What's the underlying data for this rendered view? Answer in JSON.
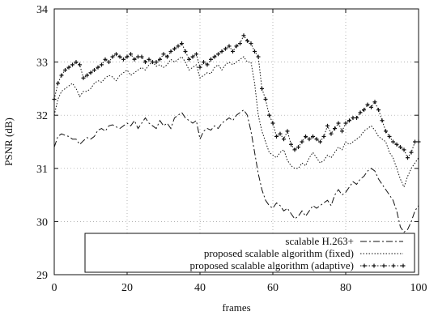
{
  "chart_data": {
    "type": "line",
    "xlabel": "frames",
    "ylabel": "PSNR (dB)",
    "xlim": [
      0,
      100
    ],
    "ylim": [
      29,
      34
    ],
    "xticks": [
      0,
      20,
      40,
      60,
      80,
      100
    ],
    "yticks": [
      29,
      30,
      31,
      32,
      33,
      34
    ],
    "grid": true,
    "legend_position": "bottom-right",
    "series": [
      {
        "name": "scalable H.263+",
        "style": "dash-dot line",
        "x": [
          0,
          1,
          2,
          3,
          4,
          5,
          6,
          7,
          8,
          9,
          10,
          11,
          12,
          13,
          14,
          15,
          16,
          17,
          18,
          19,
          20,
          21,
          22,
          23,
          24,
          25,
          26,
          27,
          28,
          29,
          30,
          31,
          32,
          33,
          34,
          35,
          36,
          37,
          38,
          39,
          40,
          41,
          42,
          43,
          44,
          45,
          46,
          47,
          48,
          49,
          50,
          51,
          52,
          53,
          54,
          55,
          56,
          57,
          58,
          59,
          60,
          61,
          62,
          63,
          64,
          65,
          66,
          67,
          68,
          69,
          70,
          71,
          72,
          73,
          74,
          75,
          76,
          77,
          78,
          79,
          80,
          81,
          82,
          83,
          84,
          85,
          86,
          87,
          88,
          89,
          90,
          91,
          92,
          93,
          94,
          95,
          96,
          97,
          98,
          99,
          100
        ],
        "values": [
          31.4,
          31.6,
          31.65,
          31.62,
          31.6,
          31.55,
          31.55,
          31.45,
          31.52,
          31.58,
          31.55,
          31.6,
          31.72,
          31.75,
          31.7,
          31.8,
          31.82,
          31.78,
          31.75,
          31.8,
          31.85,
          31.8,
          31.9,
          31.75,
          31.85,
          31.95,
          31.85,
          31.8,
          31.75,
          31.9,
          31.8,
          31.85,
          31.75,
          31.95,
          32.0,
          32.05,
          31.95,
          31.9,
          31.85,
          31.9,
          31.55,
          31.7,
          31.75,
          31.72,
          31.8,
          31.75,
          31.85,
          31.9,
          31.95,
          31.9,
          32.0,
          32.05,
          32.1,
          32.0,
          31.7,
          31.3,
          30.9,
          30.6,
          30.4,
          30.3,
          30.25,
          30.35,
          30.3,
          30.2,
          30.25,
          30.15,
          30.05,
          30.1,
          30.2,
          30.1,
          30.2,
          30.3,
          30.25,
          30.3,
          30.35,
          30.4,
          30.3,
          30.5,
          30.6,
          30.5,
          30.55,
          30.65,
          30.75,
          30.7,
          30.8,
          30.85,
          30.95,
          31.0,
          30.95,
          30.8,
          30.7,
          30.6,
          30.5,
          30.4,
          30.2,
          29.9,
          29.8,
          29.85,
          30.0,
          30.2,
          30.3
        ]
      },
      {
        "name": "proposed scalable algorithm (fixed)",
        "style": "dotted line",
        "x": [
          0,
          1,
          2,
          3,
          4,
          5,
          6,
          7,
          8,
          9,
          10,
          11,
          12,
          13,
          14,
          15,
          16,
          17,
          18,
          19,
          20,
          21,
          22,
          23,
          24,
          25,
          26,
          27,
          28,
          29,
          30,
          31,
          32,
          33,
          34,
          35,
          36,
          37,
          38,
          39,
          40,
          41,
          42,
          43,
          44,
          45,
          46,
          47,
          48,
          49,
          50,
          51,
          52,
          53,
          54,
          55,
          56,
          57,
          58,
          59,
          60,
          61,
          62,
          63,
          64,
          65,
          66,
          67,
          68,
          69,
          70,
          71,
          72,
          73,
          74,
          75,
          76,
          77,
          78,
          79,
          80,
          81,
          82,
          83,
          84,
          85,
          86,
          87,
          88,
          89,
          90,
          91,
          92,
          93,
          94,
          95,
          96,
          97,
          98,
          99,
          100
        ],
        "values": [
          32.0,
          32.3,
          32.45,
          32.5,
          32.55,
          32.6,
          32.5,
          32.35,
          32.45,
          32.45,
          32.5,
          32.6,
          32.65,
          32.62,
          32.7,
          32.75,
          32.72,
          32.65,
          32.75,
          32.8,
          32.85,
          32.75,
          32.8,
          32.85,
          32.9,
          32.85,
          32.95,
          33.0,
          32.92,
          32.95,
          32.9,
          32.95,
          33.05,
          33.0,
          33.05,
          33.1,
          33.0,
          32.85,
          32.9,
          32.95,
          32.7,
          32.75,
          32.8,
          32.78,
          32.9,
          32.95,
          32.85,
          32.95,
          33.0,
          32.95,
          33.0,
          33.05,
          33.1,
          33.0,
          33.0,
          32.6,
          32.0,
          31.7,
          31.5,
          31.3,
          31.25,
          31.2,
          31.3,
          31.35,
          31.15,
          31.05,
          31.0,
          31.0,
          31.1,
          31.05,
          31.2,
          31.3,
          31.2,
          31.1,
          31.15,
          31.25,
          31.2,
          31.3,
          31.4,
          31.35,
          31.5,
          31.45,
          31.5,
          31.55,
          31.6,
          31.7,
          31.75,
          31.8,
          31.72,
          31.6,
          31.55,
          31.5,
          31.3,
          31.2,
          31.0,
          30.8,
          30.65,
          30.85,
          31.0,
          31.1,
          31.2
        ]
      },
      {
        "name": "proposed scalable algorithm (adaptive)",
        "style": "dotted line with + markers",
        "x": [
          0,
          1,
          2,
          3,
          4,
          5,
          6,
          7,
          8,
          9,
          10,
          11,
          12,
          13,
          14,
          15,
          16,
          17,
          18,
          19,
          20,
          21,
          22,
          23,
          24,
          25,
          26,
          27,
          28,
          29,
          30,
          31,
          32,
          33,
          34,
          35,
          36,
          37,
          38,
          39,
          40,
          41,
          42,
          43,
          44,
          45,
          46,
          47,
          48,
          49,
          50,
          51,
          52,
          53,
          54,
          55,
          56,
          57,
          58,
          59,
          60,
          61,
          62,
          63,
          64,
          65,
          66,
          67,
          68,
          69,
          70,
          71,
          72,
          73,
          74,
          75,
          76,
          77,
          78,
          79,
          80,
          81,
          82,
          83,
          84,
          85,
          86,
          87,
          88,
          89,
          90,
          91,
          92,
          93,
          94,
          95,
          96,
          97,
          98,
          99,
          100
        ],
        "values": [
          32.3,
          32.6,
          32.75,
          32.85,
          32.9,
          32.95,
          33.0,
          32.95,
          32.7,
          32.75,
          32.8,
          32.85,
          32.9,
          32.95,
          33.05,
          33.0,
          33.1,
          33.15,
          33.1,
          33.05,
          33.1,
          33.15,
          33.05,
          33.1,
          33.1,
          33.0,
          33.05,
          33.0,
          33.0,
          33.05,
          33.15,
          33.1,
          33.2,
          33.25,
          33.3,
          33.35,
          33.2,
          33.05,
          33.1,
          33.15,
          32.9,
          33.0,
          32.95,
          33.05,
          33.1,
          33.15,
          33.2,
          33.25,
          33.3,
          33.2,
          33.3,
          33.35,
          33.5,
          33.4,
          33.35,
          33.2,
          33.1,
          32.5,
          32.3,
          32.0,
          31.85,
          31.6,
          31.65,
          31.55,
          31.7,
          31.45,
          31.35,
          31.4,
          31.5,
          31.6,
          31.55,
          31.6,
          31.55,
          31.5,
          31.6,
          31.8,
          31.65,
          31.75,
          31.85,
          31.7,
          31.85,
          31.9,
          31.95,
          31.95,
          32.05,
          32.1,
          32.2,
          32.15,
          32.25,
          32.1,
          31.9,
          31.7,
          31.6,
          31.5,
          31.45,
          31.4,
          31.35,
          31.2,
          31.3,
          31.5,
          31.5
        ]
      }
    ]
  }
}
